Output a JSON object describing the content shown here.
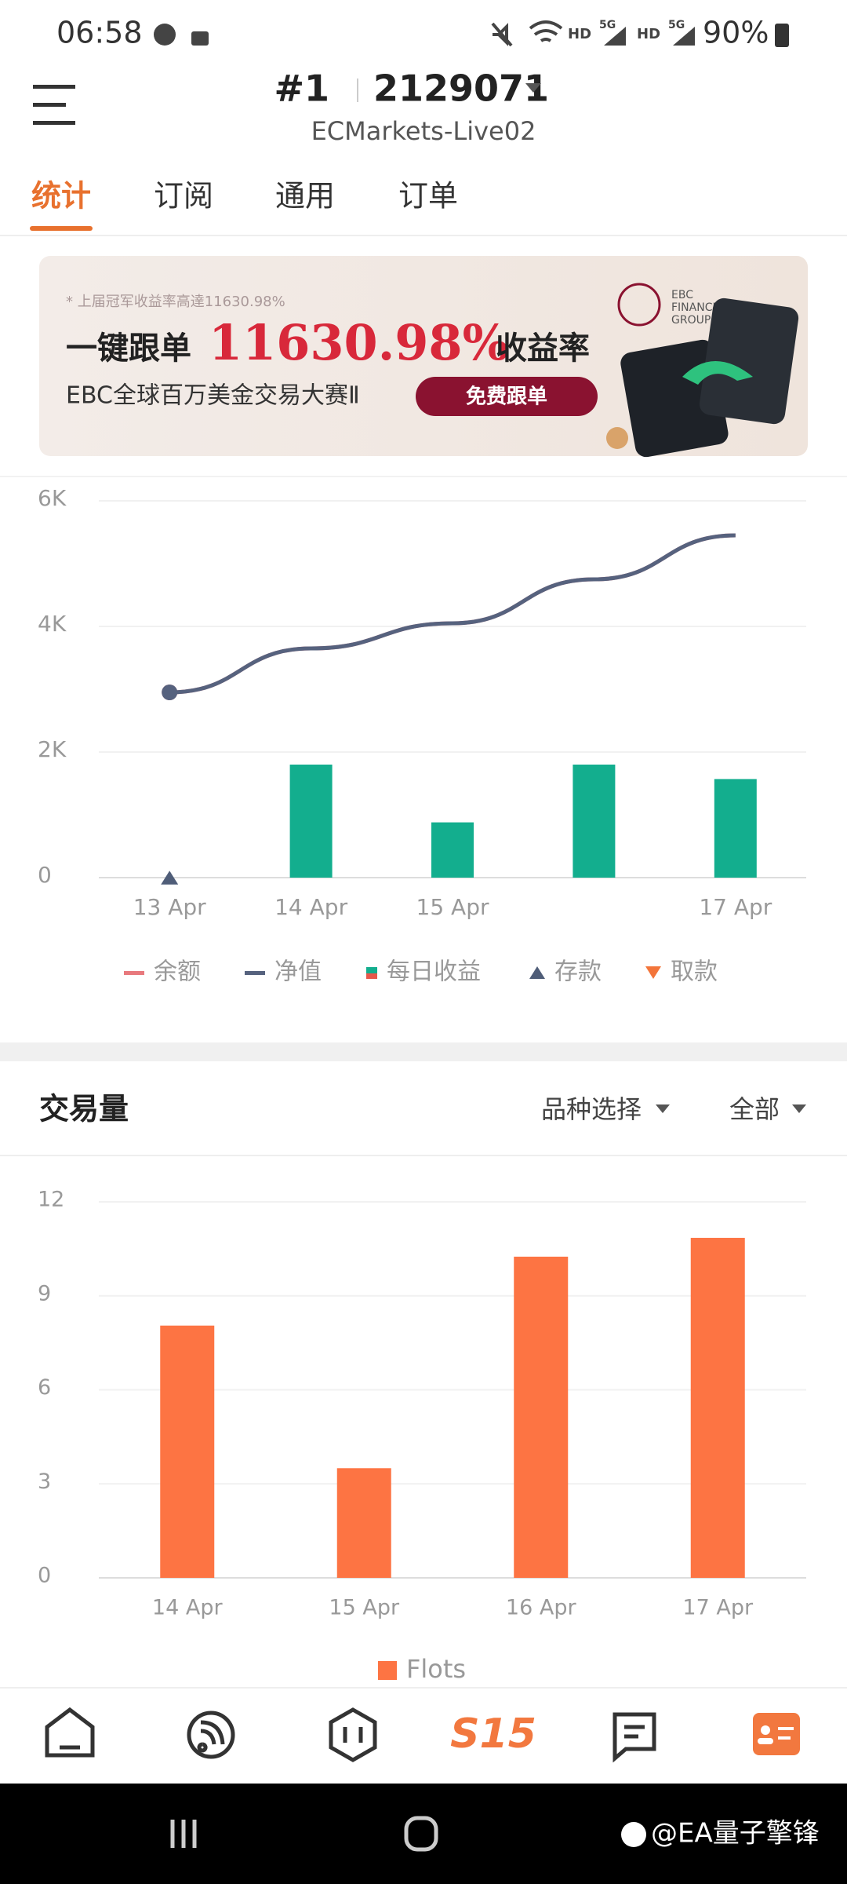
{
  "status": {
    "time": "06:58",
    "network": [
      "HD",
      "5G",
      "HD",
      "5G"
    ],
    "battery": "90%"
  },
  "header": {
    "account_no": "#1",
    "account": "2129071",
    "server": "ECMarkets-Live02"
  },
  "tabs": [
    "统计",
    "订阅",
    "通用",
    "订单"
  ],
  "banner": {
    "note": "* 上届冠军收益率高達11630.98%",
    "lead": "一键跟单",
    "rate": "11630.98%",
    "tail": "收益率",
    "contest": "EBC全球百万美金交易大赛Ⅱ",
    "button": "免费跟单",
    "brand": [
      "EBC",
      "FINANCIAL",
      "GROUP"
    ]
  },
  "section": {
    "title": "交易量",
    "filter": "品种选择",
    "scope": "全部"
  },
  "chart_data": [
    {
      "type": "combo",
      "categories": [
        "13 Apr",
        "14 Apr",
        "15 Apr",
        null,
        "17 Apr"
      ],
      "series": [
        {
          "name": "余额",
          "type": "line",
          "color": "#e8797d",
          "values": [
            2950,
            3650,
            4050,
            4750,
            5450
          ]
        },
        {
          "name": "净值",
          "type": "line",
          "color": "#56627e",
          "values": [
            2950,
            3650,
            4050,
            4750,
            5450
          ]
        },
        {
          "name": "每日收益",
          "type": "bar",
          "color": "#13ae8e",
          "values": [
            null,
            1800,
            880,
            1800,
            1570
          ]
        },
        {
          "name": "存款",
          "type": "scatter",
          "marker": "triangle",
          "color": "#4f5d78",
          "values": [
            0,
            null,
            null,
            null,
            null
          ]
        },
        {
          "name": "取款",
          "type": "scatter",
          "marker": "triangle-down",
          "color": "#f3753a",
          "values": [
            null,
            null,
            null,
            null,
            null
          ]
        }
      ],
      "ylim": [
        0,
        6000
      ],
      "yticks": [
        0,
        {
          "value": 2000,
          "label": "2K"
        },
        {
          "value": 4000,
          "label": "4K"
        },
        {
          "value": 6000,
          "label": "6K"
        }
      ],
      "grid": true
    },
    {
      "type": "bar",
      "categories": [
        "14 Apr",
        "15 Apr",
        "16 Apr",
        "17 Apr"
      ],
      "series": [
        {
          "name": "Flots",
          "color": "#fd7443",
          "values": [
            8.05,
            3.5,
            10.25,
            10.85
          ]
        }
      ],
      "ylim": [
        0,
        12
      ],
      "yticks": [
        0,
        3,
        6,
        9,
        12
      ],
      "grid": true
    }
  ],
  "nav": {
    "center": "S15"
  },
  "watermark": "@EA量子擎锋"
}
